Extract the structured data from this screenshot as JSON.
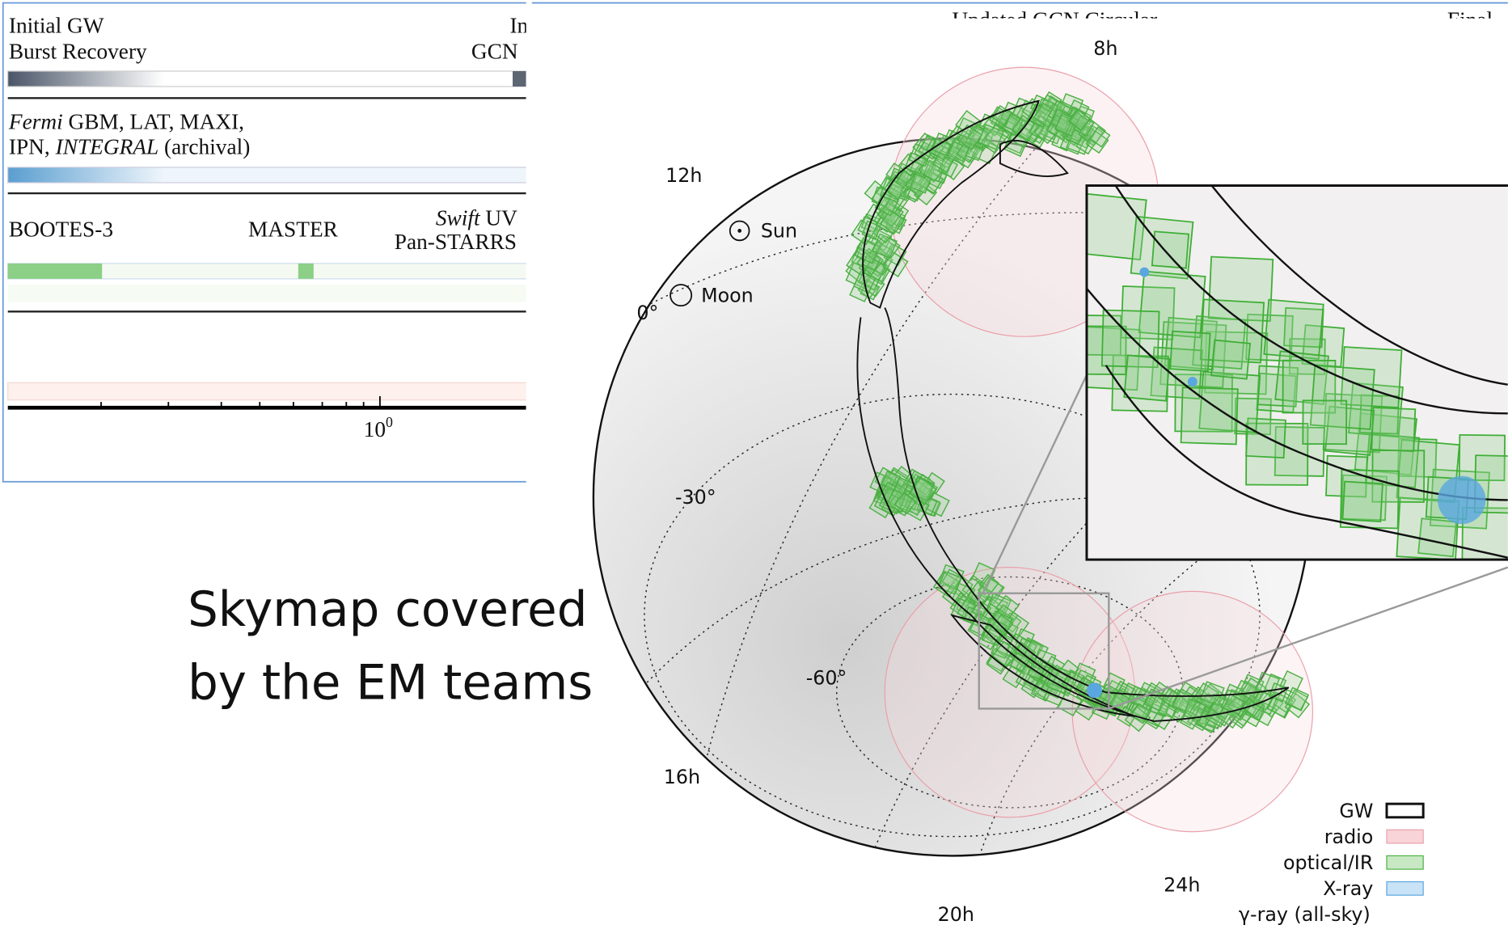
{
  "timeline": {
    "header": {
      "gw": [
        "Initial GW",
        "Burst Recovery"
      ],
      "gcn": [
        "Ini",
        "GCN"
      ],
      "updated": "Updated GCN Circular",
      "final": "Final"
    },
    "high_energy": {
      "line1_italic": "Fermi",
      "line1_rest": " GBM, LAT, MAXI,",
      "line2_start": "IPN, ",
      "line2_italic": "INTEGRAL",
      "line2_rest": " (archival)"
    },
    "optical": {
      "bootes": "BOOTES-3",
      "master": "MASTER",
      "swift_italic": "Swift",
      "swift_rest": " UV",
      "panstarrs": "Pan-STARRS"
    },
    "axis_tick": {
      "base": "10",
      "exponent": "0"
    }
  },
  "skymap": {
    "ra_labels": [
      "8h",
      "12h",
      "16h",
      "20h",
      "24h"
    ],
    "dec_labels": [
      "0°",
      "-30°",
      "-60°"
    ],
    "sun": "Sun",
    "moon": "Moon",
    "legend": [
      "GW",
      "radio",
      "optical/IR",
      "X-ray",
      "γ-ray (all-sky)"
    ]
  },
  "caption": [
    "Skymap covered",
    "by the EM teams"
  ]
}
